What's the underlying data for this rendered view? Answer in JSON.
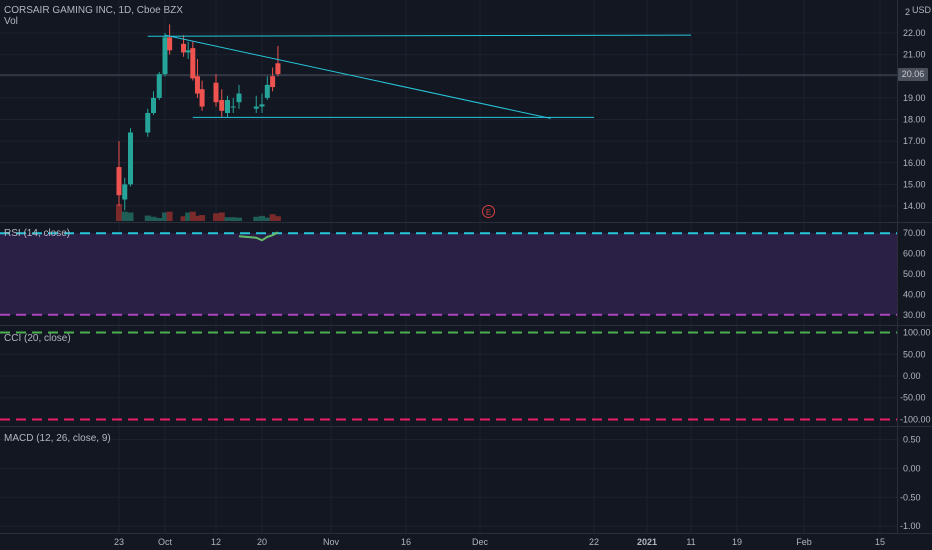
{
  "header": {
    "title": "CORSAIR GAMING INC, 1D, Cboe BZX",
    "volume_label": "Vol",
    "currency": "USD",
    "last_price": "20.06"
  },
  "panes": {
    "rsi": "RSI (14, close)",
    "cci": "CCI (20, close)",
    "macd": "MACD (12, 26, close, 9)"
  },
  "earnings_marker": "E",
  "colors": {
    "background": "#131722",
    "up": "#26a69a",
    "down": "#ef5350",
    "trendline": "#26c6da",
    "rsi_band": "#2a1f45",
    "rsi_upper": "#26c6da",
    "rsi_lower": "#ab47bc",
    "cci_upper": "#4caf50",
    "cci_lower": "#e91e63",
    "rsi_line": "#66bb6a"
  },
  "chart_data": [
    {
      "type": "candlestick",
      "title": "CORSAIR GAMING INC, 1D, Cboe BZX",
      "x_ticks": [
        "23",
        "Oct",
        "12",
        "20",
        "Nov",
        "16",
        "Dec",
        "22",
        "2021",
        "11",
        "19",
        "Feb",
        "15"
      ],
      "y_ticks": [
        2,
        22.0,
        21.0,
        20.0,
        19.0,
        18.0,
        17.0,
        16.0,
        15.0,
        14.0
      ],
      "ylim": [
        13.2,
        23.0
      ],
      "last_price": 20.06,
      "candles": [
        {
          "date": "2020-09-23",
          "open": 15.8,
          "high": 17.0,
          "low": 14.0,
          "close": 14.5
        },
        {
          "date": "2020-09-24",
          "open": 14.3,
          "high": 15.3,
          "low": 13.8,
          "close": 15.0
        },
        {
          "date": "2020-09-25",
          "open": 15.0,
          "high": 17.6,
          "low": 14.9,
          "close": 17.4
        },
        {
          "date": "2020-09-28",
          "open": 17.4,
          "high": 18.5,
          "low": 17.2,
          "close": 18.3
        },
        {
          "date": "2020-09-29",
          "open": 18.3,
          "high": 19.3,
          "low": 18.2,
          "close": 19.0
        },
        {
          "date": "2020-09-30",
          "open": 19.0,
          "high": 20.2,
          "low": 18.9,
          "close": 20.1
        },
        {
          "date": "2020-10-01",
          "open": 20.1,
          "high": 22.0,
          "low": 20.0,
          "close": 21.8
        },
        {
          "date": "2020-10-02",
          "open": 21.8,
          "high": 22.4,
          "low": 21.0,
          "close": 21.2
        },
        {
          "date": "2020-10-05",
          "open": 21.5,
          "high": 21.9,
          "low": 20.9,
          "close": 21.1
        },
        {
          "date": "2020-10-06",
          "open": 21.1,
          "high": 21.6,
          "low": 20.8,
          "close": 21.2
        },
        {
          "date": "2020-10-07",
          "open": 21.3,
          "high": 21.6,
          "low": 19.8,
          "close": 19.9
        },
        {
          "date": "2020-10-08",
          "open": 20.0,
          "high": 20.8,
          "low": 19.0,
          "close": 19.2
        },
        {
          "date": "2020-10-09",
          "open": 19.4,
          "high": 19.8,
          "low": 18.4,
          "close": 18.6
        },
        {
          "date": "2020-10-12",
          "open": 19.7,
          "high": 20.1,
          "low": 18.6,
          "close": 18.8
        },
        {
          "date": "2020-10-13",
          "open": 18.9,
          "high": 19.4,
          "low": 18.1,
          "close": 18.4
        },
        {
          "date": "2020-10-14",
          "open": 18.3,
          "high": 19.1,
          "low": 18.1,
          "close": 18.9
        },
        {
          "date": "2020-10-15",
          "open": 18.6,
          "high": 19.0,
          "low": 18.3,
          "close": 18.6
        },
        {
          "date": "2020-10-16",
          "open": 18.8,
          "high": 19.6,
          "low": 18.5,
          "close": 19.2
        },
        {
          "date": "2020-10-19",
          "open": 18.5,
          "high": 19.1,
          "low": 18.3,
          "close": 18.6
        },
        {
          "date": "2020-10-20",
          "open": 18.6,
          "high": 19.2,
          "low": 18.3,
          "close": 18.7
        },
        {
          "date": "2020-10-21",
          "open": 19.0,
          "high": 20.0,
          "low": 18.9,
          "close": 19.6
        },
        {
          "date": "2020-10-22",
          "open": 20.0,
          "high": 20.4,
          "low": 19.3,
          "close": 19.5
        },
        {
          "date": "2020-10-23",
          "open": 20.6,
          "high": 21.4,
          "low": 20.0,
          "close": 20.1
        }
      ],
      "volume_relative": [
        1.0,
        0.55,
        0.5,
        0.32,
        0.25,
        0.18,
        0.5,
        0.55,
        0.28,
        0.5,
        0.55,
        0.3,
        0.35,
        0.45,
        0.5,
        0.22,
        0.22,
        0.2,
        0.25,
        0.3,
        0.2,
        0.4,
        0.28
      ],
      "trendlines": [
        {
          "from": [
            "2020-09-28",
            21.85
          ],
          "to": [
            "2021-01-11",
            21.9
          ]
        },
        {
          "from": [
            "2020-10-01",
            21.9
          ],
          "to": [
            "2020-12-14",
            18.05
          ]
        },
        {
          "from": [
            "2020-10-07",
            18.1
          ],
          "to": [
            "2020-12-22",
            18.1
          ]
        }
      ]
    },
    {
      "type": "line",
      "title": "RSI (14, close)",
      "y_ticks": [
        70.0,
        60.0,
        50.0,
        40.0,
        30.0
      ],
      "ylim": [
        25,
        75
      ],
      "levels": [
        70,
        30
      ],
      "band": [
        30,
        70
      ],
      "series": [
        {
          "x": [
            "2020-10-16",
            "2020-10-19",
            "2020-10-20",
            "2020-10-21",
            "2020-10-22",
            "2020-10-23"
          ],
          "values": [
            68.5,
            67.8,
            66.5,
            68.2,
            69.0,
            70.5
          ]
        }
      ]
    },
    {
      "type": "line",
      "title": "CCI (20, close)",
      "y_ticks": [
        100.0,
        50.0,
        0.0,
        -50.0,
        -100.0
      ],
      "ylim": [
        -115,
        115
      ],
      "levels": [
        100,
        -100
      ],
      "series": []
    },
    {
      "type": "line",
      "title": "MACD (12, 26, close, 9)",
      "y_ticks": [
        0.5,
        0.0,
        -0.5,
        -1.0
      ],
      "ylim": [
        -1.12,
        0.72
      ],
      "series": []
    }
  ]
}
